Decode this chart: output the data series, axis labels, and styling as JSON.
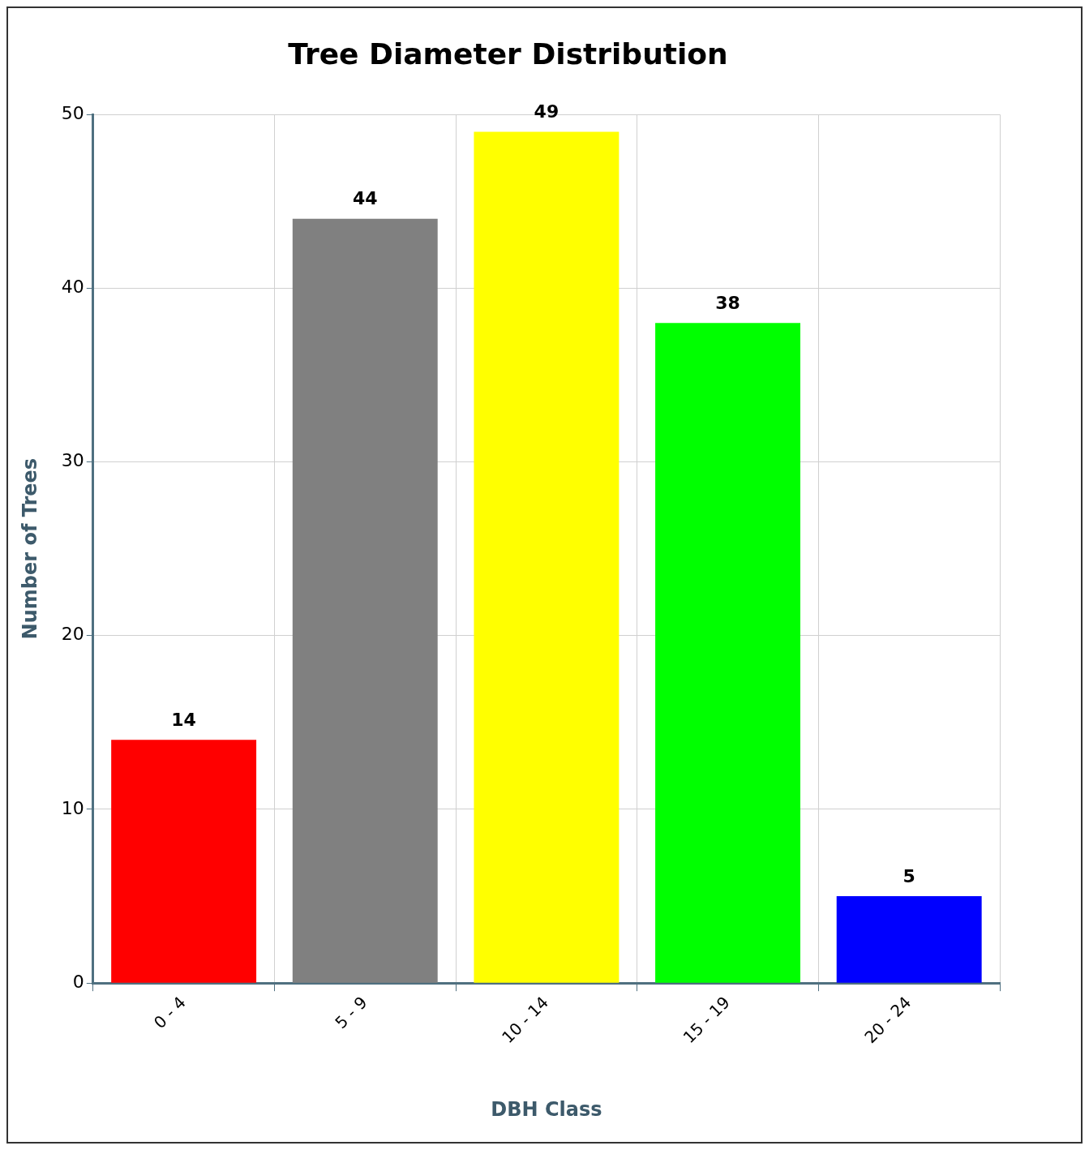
{
  "chart_data": {
    "type": "bar",
    "title": "Tree Diameter Distribution",
    "xlabel": "DBH Class",
    "ylabel": "Number of Trees",
    "categories": [
      "0 - 4",
      "5 - 9",
      "10 - 14",
      "15 - 19",
      "20 - 24"
    ],
    "values": [
      14,
      44,
      49,
      38,
      5
    ],
    "colors": [
      "#ff0000",
      "#808080",
      "#ffff00",
      "#00ff00",
      "#0000ff"
    ],
    "ylim": [
      0,
      50
    ],
    "yticks": [
      0,
      10,
      20,
      30,
      40,
      50
    ],
    "grid": true,
    "legend": false,
    "data_labels": true
  }
}
